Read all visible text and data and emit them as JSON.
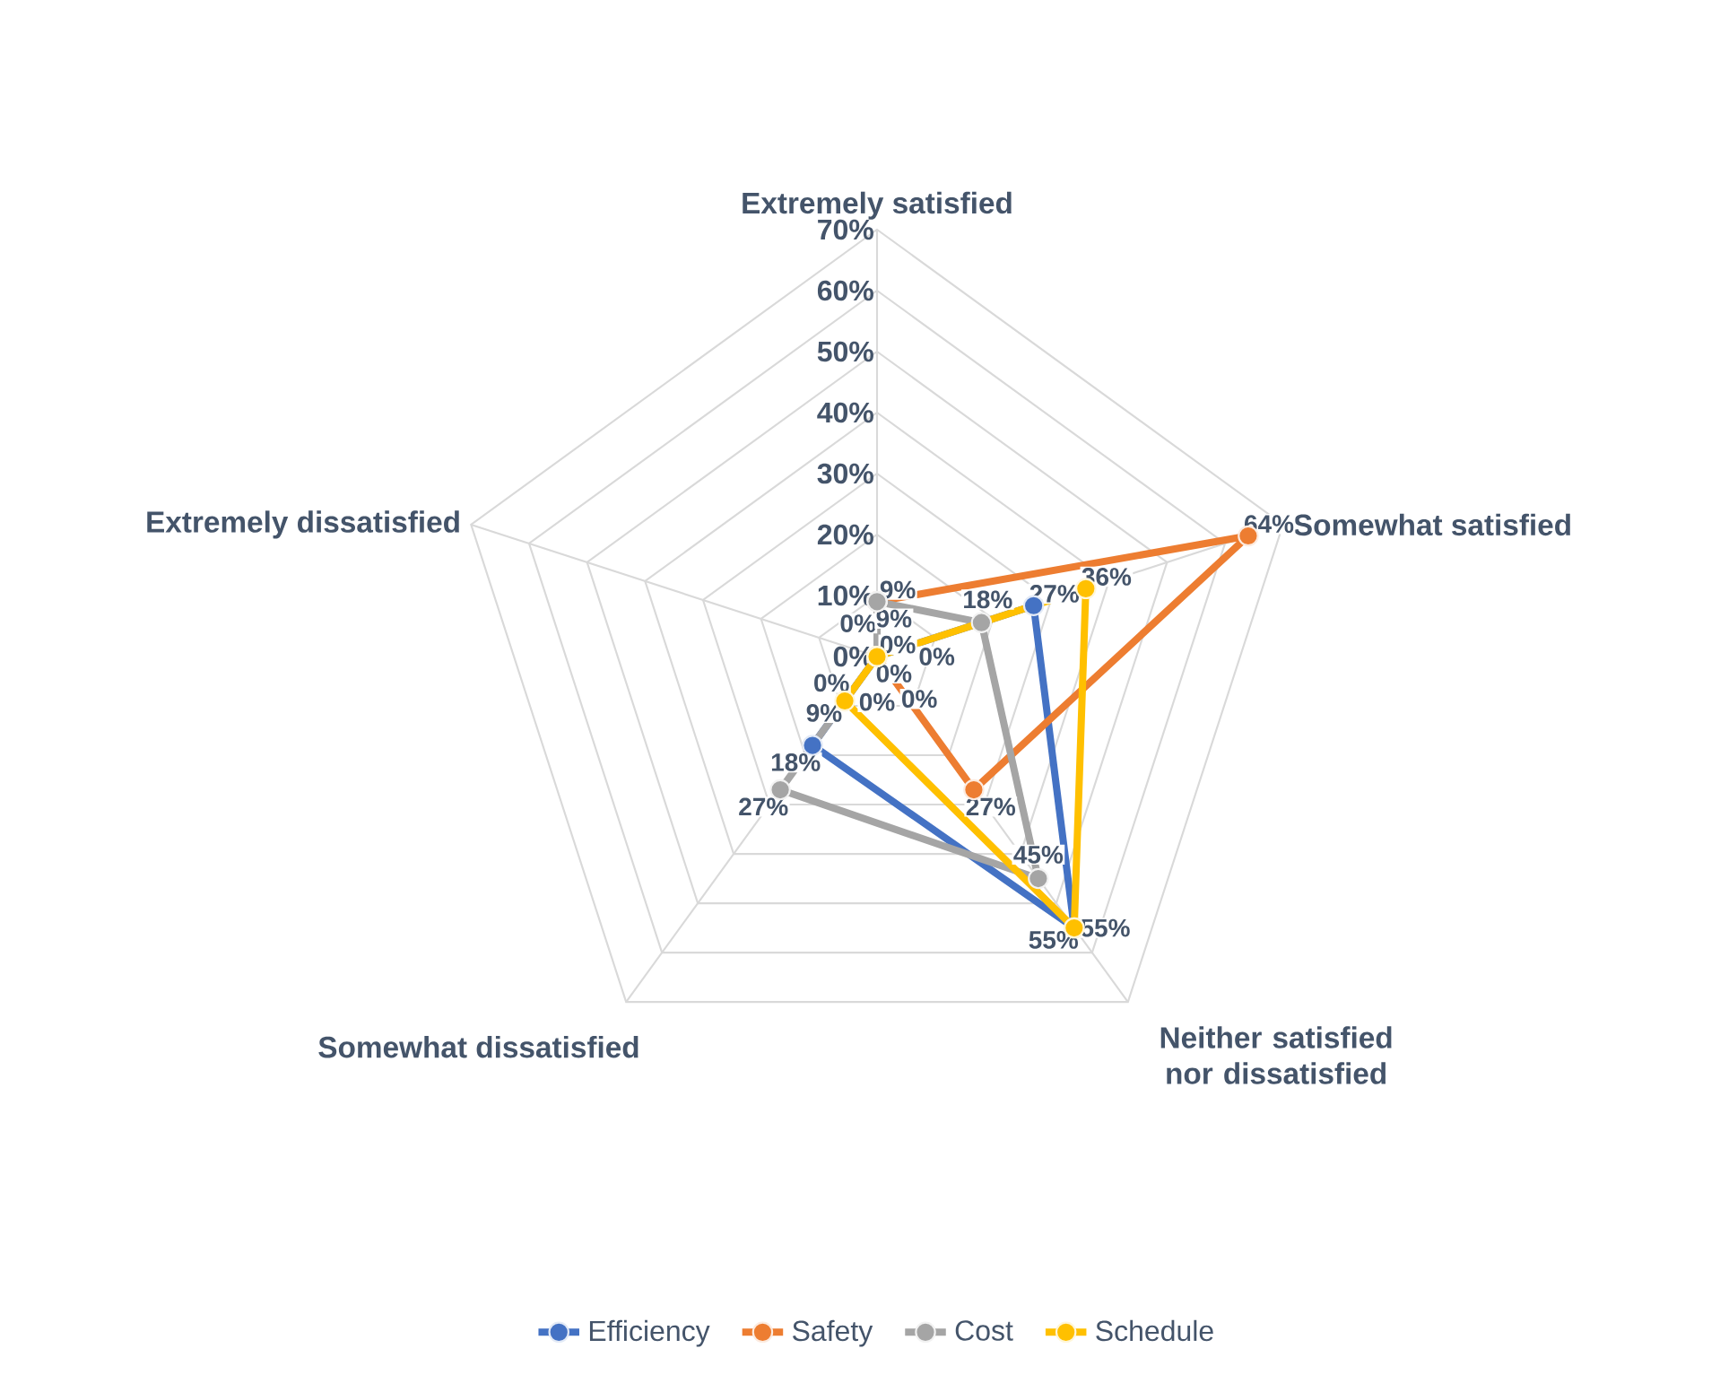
{
  "chart_data": {
    "type": "radar",
    "categories": [
      "Extremely satisfied",
      "Somewhat satisfied",
      "Neither satisfied nor dissatisfied",
      "Somewhat dissatisfied",
      "Extremely dissatisfied"
    ],
    "series": [
      {
        "name": "Efficiency",
        "color": "#4472c4",
        "values": [
          0,
          27,
          55,
          18,
          0
        ],
        "value_labels": [
          "0%",
          "27%",
          "55%",
          "18%",
          "0%"
        ]
      },
      {
        "name": "Safety",
        "color": "#ed7d31",
        "values": [
          9,
          64,
          27,
          0,
          0
        ],
        "value_labels": [
          "9%",
          "64%",
          "27%",
          "0%",
          "0%"
        ]
      },
      {
        "name": "Cost",
        "color": "#a5a5a5",
        "values": [
          9,
          18,
          45,
          27,
          0
        ],
        "value_labels": [
          "9%",
          "18%",
          "45%",
          "27%",
          "0%"
        ]
      },
      {
        "name": "Schedule",
        "color": "#ffc000",
        "values": [
          0,
          36,
          55,
          9,
          0
        ],
        "value_labels": [
          "0%",
          "36%",
          "55%",
          "9%",
          "0%"
        ]
      }
    ],
    "ylim": [
      0,
      70
    ],
    "yticks": [
      {
        "value": 0,
        "label": "0%"
      },
      {
        "value": 10,
        "label": "10%"
      },
      {
        "value": 20,
        "label": "20%"
      },
      {
        "value": 30,
        "label": "30%"
      },
      {
        "value": 40,
        "label": "40%"
      },
      {
        "value": 50,
        "label": "50%"
      },
      {
        "value": 60,
        "label": "60%"
      },
      {
        "value": 70,
        "label": "70%"
      }
    ],
    "grid": true,
    "legend": "bottom",
    "marker": "circle",
    "line_style": "solid"
  }
}
